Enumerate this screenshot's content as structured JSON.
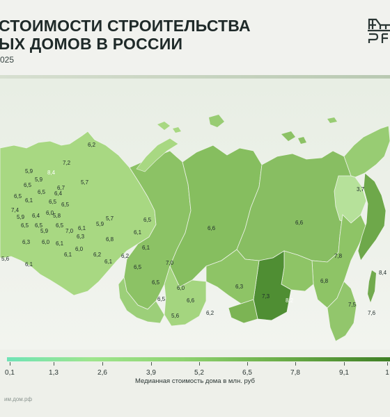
{
  "header": {
    "title": "СТОИМОСТИ СТРОИТЕЛЬСТВА\nЫХ ДОМОВ В РОССИИ",
    "subtitle": "025"
  },
  "logo": {
    "name": "dom-rf-logo-icon"
  },
  "colors": {
    "background": "#eef0ea",
    "scale_low": "#6fe3b6",
    "scale_mid": "#8fd371",
    "scale_high": "#3f7f25"
  },
  "map": {
    "type": "choropleth",
    "unit": "млн. руб",
    "region_values": [
      {
        "value": "6,2"
      },
      {
        "value": "7,2"
      },
      {
        "value": "8,4"
      },
      {
        "value": "5,9"
      },
      {
        "value": "6,5"
      },
      {
        "value": "5,9"
      },
      {
        "value": "6,5"
      },
      {
        "value": "6,7"
      },
      {
        "value": "5,7"
      },
      {
        "value": "6,5"
      },
      {
        "value": "6,1"
      },
      {
        "value": "6,5"
      },
      {
        "value": "6,5"
      },
      {
        "value": "7,4"
      },
      {
        "value": "6,0"
      },
      {
        "value": "5,9"
      },
      {
        "value": "6,4"
      },
      {
        "value": "5,8"
      },
      {
        "value": "6,5"
      },
      {
        "value": "6,5"
      },
      {
        "value": "6,5"
      },
      {
        "value": "5,9"
      },
      {
        "value": "7,0"
      },
      {
        "value": "6,3"
      },
      {
        "value": "6,0"
      },
      {
        "value": "6,1"
      },
      {
        "value": "6,1"
      },
      {
        "value": "5,6"
      },
      {
        "value": "6,1"
      },
      {
        "value": "6,0"
      },
      {
        "value": "6,1"
      },
      {
        "value": "5,9"
      },
      {
        "value": "5,7"
      },
      {
        "value": "6,3"
      },
      {
        "value": "6,8"
      },
      {
        "value": "6,2"
      },
      {
        "value": "6,1"
      },
      {
        "value": "6,1"
      },
      {
        "value": "6,2"
      },
      {
        "value": "6,5"
      },
      {
        "value": "6,5"
      },
      {
        "value": "7,0"
      },
      {
        "value": "6,5"
      },
      {
        "value": "6,0"
      },
      {
        "value": "6,6"
      },
      {
        "value": "5,6"
      },
      {
        "value": "6,2"
      },
      {
        "value": "6,6"
      },
      {
        "value": "6,3"
      },
      {
        "value": "7,3"
      },
      {
        "value": "8,2"
      },
      {
        "value": "6,6"
      },
      {
        "value": "3,7"
      },
      {
        "value": "7,8"
      },
      {
        "value": "6,8"
      },
      {
        "value": "7,5"
      },
      {
        "value": "7,6"
      },
      {
        "value": "8,4"
      },
      {
        "value": "6,1"
      },
      {
        "value": "6,5"
      },
      {
        "value": "6,4"
      }
    ]
  },
  "legend": {
    "ticks": [
      "0,1",
      "1,3",
      "2,6",
      "3,9",
      "5,2",
      "6,5",
      "7,8",
      "9,1",
      "1"
    ],
    "caption": "Медианная стоимость дома в млн. руб"
  },
  "footer": {
    "source": "им.дом.рф"
  }
}
